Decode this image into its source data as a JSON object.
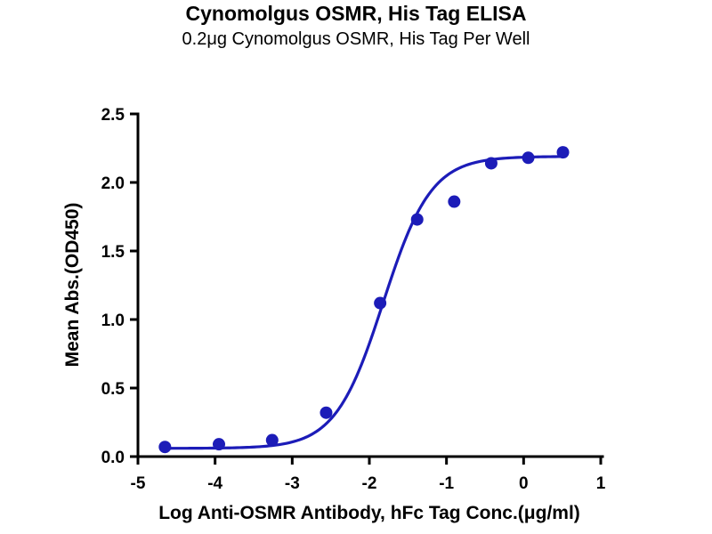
{
  "chart_data": {
    "type": "scatter",
    "title": "Cynomolgus OSMR, His Tag ELISA",
    "subtitle": "0.2μg Cynomolgus OSMR, His Tag Per Well",
    "xlabel": "Log Anti-OSMR Antibody, hFc Tag Conc.(μg/ml)",
    "ylabel": "Mean Abs.(OD450)",
    "xlim": [
      -5,
      1
    ],
    "ylim": [
      0,
      2.5
    ],
    "xticks": [
      -5,
      -4,
      -3,
      -2,
      -1,
      0,
      1
    ],
    "yticks": [
      0,
      0.5,
      1,
      1.5,
      2,
      2.5
    ],
    "grid": false,
    "legend": "none",
    "points": [
      [
        -4.65,
        0.07
      ],
      [
        -3.95,
        0.09
      ],
      [
        -3.26,
        0.12
      ],
      [
        -2.56,
        0.32
      ],
      [
        -1.86,
        1.12
      ],
      [
        -1.38,
        1.73
      ],
      [
        -0.9,
        1.86
      ],
      [
        -0.42,
        2.14
      ],
      [
        0.06,
        2.18
      ],
      [
        0.51,
        2.22
      ]
    ],
    "fit_curve_type": "4PL sigmoid",
    "fit_4pl": {
      "bottom": 0.06,
      "top": 2.19,
      "logEC50": -1.82,
      "hillslope": 1.4
    },
    "series_color": "#1c1cb8",
    "axis_color": "#000000",
    "marker_radius": 7,
    "curve_width": 3.2
  }
}
